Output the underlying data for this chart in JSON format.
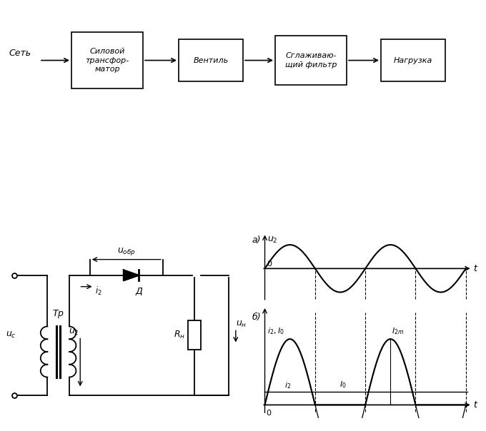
{
  "bg_color": "#ffffff",
  "block_labels": [
    "Силовой\nтрансфор-\nматор",
    "Вентиль",
    "Сглаживаю-\nщий фильтр",
    "Нагрузка"
  ],
  "input_label": "Сеть",
  "font_size_blocks": 8,
  "font_size_labels": 9
}
